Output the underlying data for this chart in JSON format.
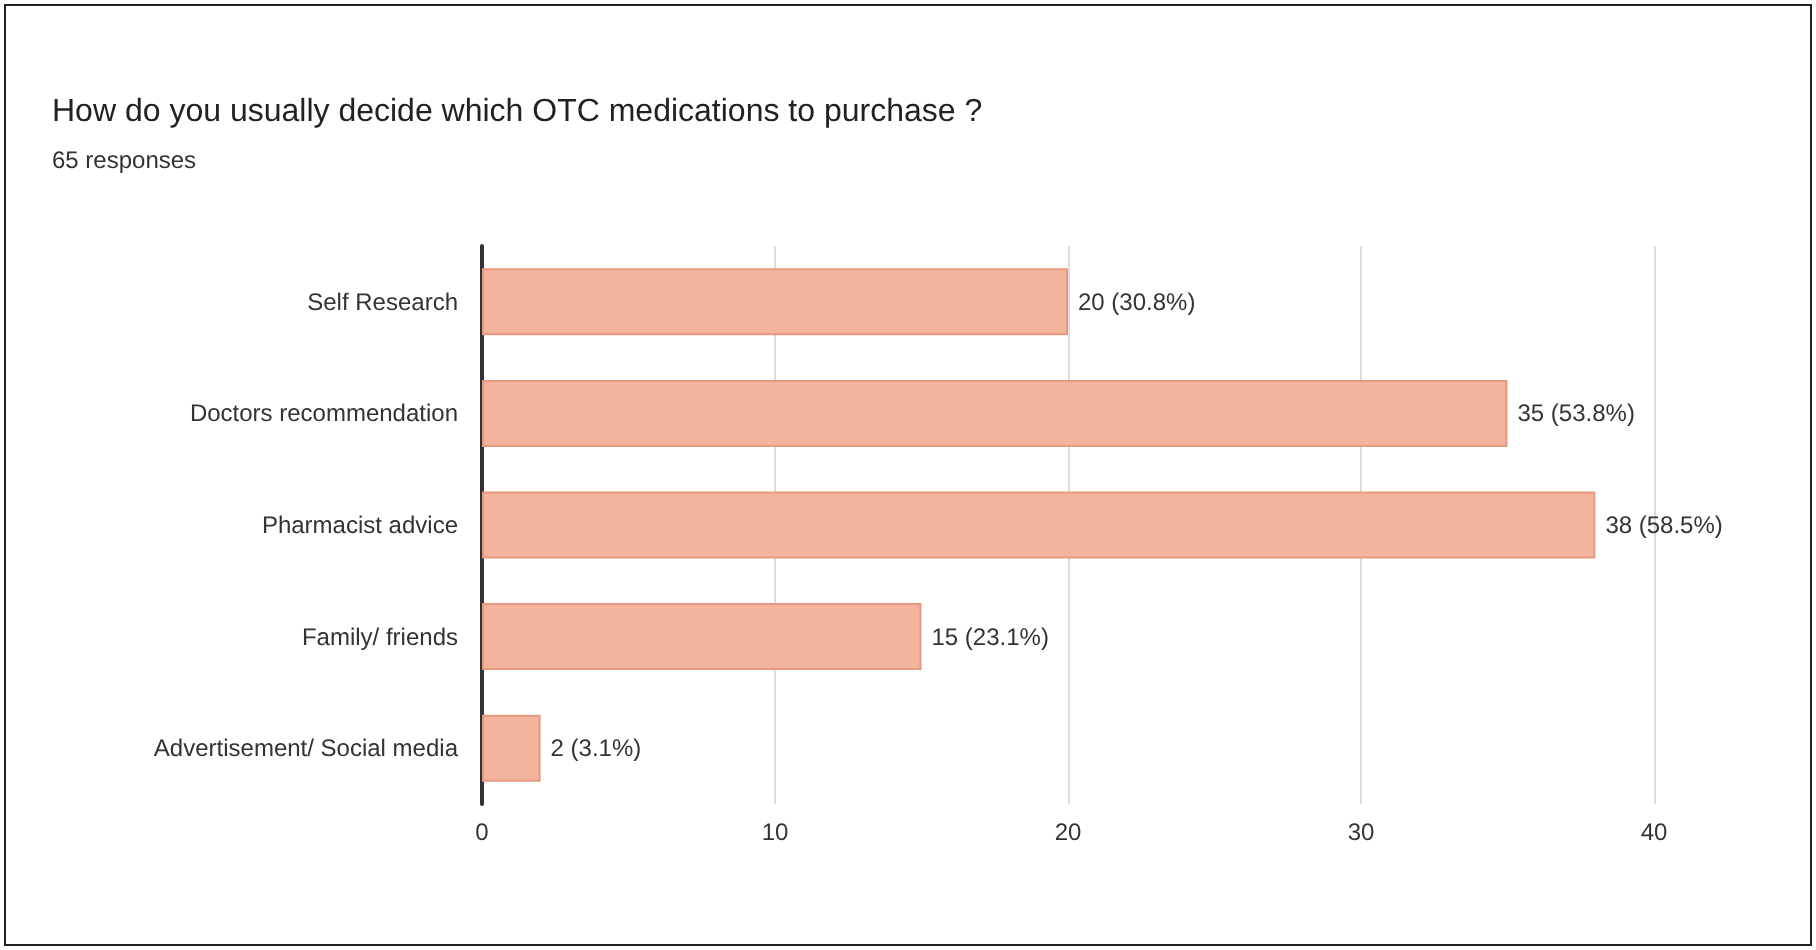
{
  "chart_data": {
    "type": "bar",
    "orientation": "horizontal",
    "title": "How do you usually decide which OTC medications to purchase ?",
    "subtitle": "65 responses",
    "categories": [
      "Self Research",
      "Doctors recommendation",
      "Pharmacist advice",
      "Family/ friends",
      "Advertisement/ Social media"
    ],
    "values": [
      20,
      35,
      38,
      15,
      2
    ],
    "value_labels": [
      "20 (30.8%)",
      "35 (53.8%)",
      "38 (58.5%)",
      "15 (23.1%)",
      "2 (3.1%)"
    ],
    "color": "#f4b39c",
    "xlim": [
      0,
      40
    ],
    "xticks": [
      0,
      10,
      20,
      30,
      40
    ],
    "grid": "x"
  }
}
